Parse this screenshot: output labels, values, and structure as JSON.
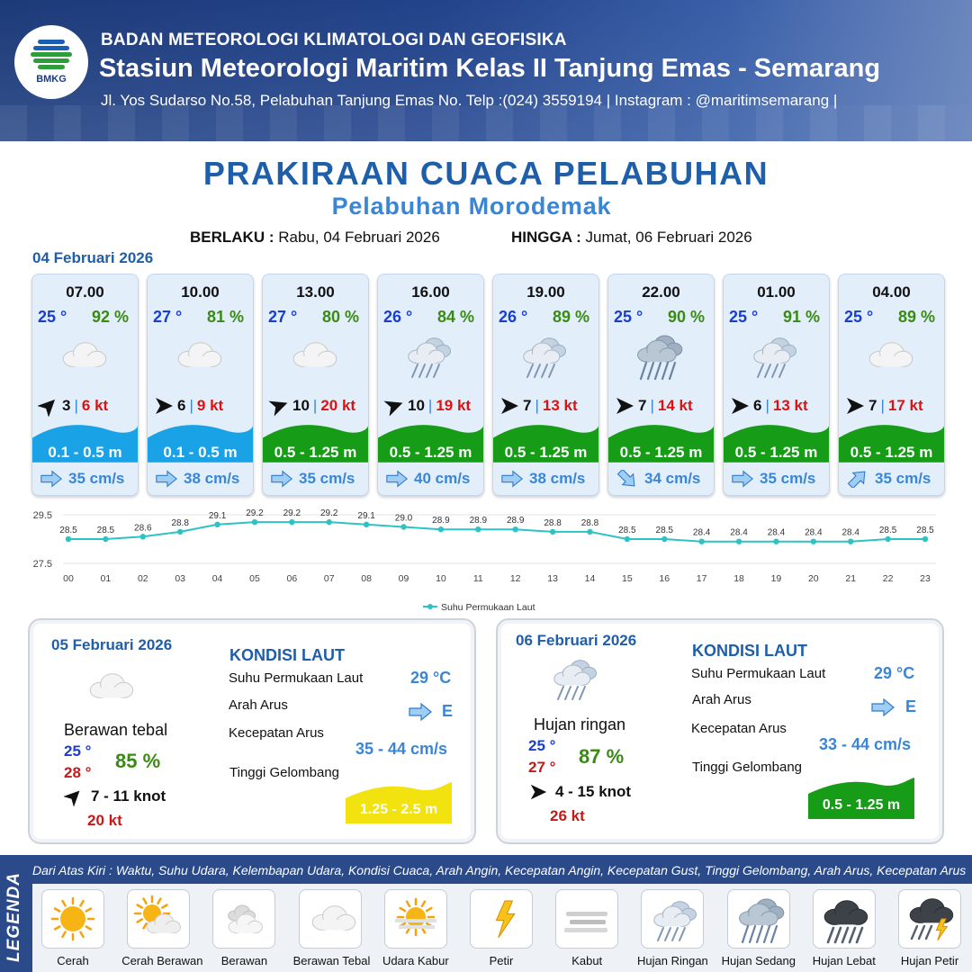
{
  "header": {
    "logo_text": "BMKG",
    "agency": "BADAN METEOROLOGI KLIMATOLOGI DAN GEOFISIKA",
    "station": "Stasiun Meteorologi Maritim Kelas II Tanjung Emas - Semarang",
    "address": "Jl. Yos Sudarso No.58, Pelabuhan Tanjung Emas No. Telp :(024) 3559194 | Instagram : @maritimsemarang |"
  },
  "title": "PRAKIRAAN CUACA PELABUHAN",
  "subtitle": "Pelabuhan Morodemak",
  "validity": {
    "from_label": "BERLAKU :",
    "from_value": "Rabu, 04 Februari 2026",
    "to_label": "HINGGA :",
    "to_value": "Jumat, 06 Februari 2026"
  },
  "day1_date": "04 Februari 2026",
  "cards": [
    {
      "time": "07.00",
      "temp": "25 °",
      "humidity": "92 %",
      "condition_icon": "berawan-tebal-icon",
      "wind_dir_deg": 45,
      "wind_speed": "3",
      "gust": "6 kt",
      "wave": "0.1 - 0.5 m",
      "wave_color": "#19a2e6",
      "current_dir_deg": 90,
      "current": "35 cm/s"
    },
    {
      "time": "10.00",
      "temp": "27 °",
      "humidity": "81 %",
      "condition_icon": "berawan-tebal-icon",
      "wind_dir_deg": 90,
      "wind_speed": "6",
      "gust": "9 kt",
      "wave": "0.1 - 0.5 m",
      "wave_color": "#19a2e6",
      "current_dir_deg": 90,
      "current": "38 cm/s"
    },
    {
      "time": "13.00",
      "temp": "27 °",
      "humidity": "80 %",
      "condition_icon": "berawan-tebal-icon",
      "wind_dir_deg": 70,
      "wind_speed": "10",
      "gust": "20 kt",
      "wave": "0.5 - 1.25 m",
      "wave_color": "#169c16",
      "current_dir_deg": 90,
      "current": "35 cm/s"
    },
    {
      "time": "16.00",
      "temp": "26 °",
      "humidity": "84 %",
      "condition_icon": "hujan-ringan-icon",
      "wind_dir_deg": 70,
      "wind_speed": "10",
      "gust": "19 kt",
      "wave": "0.5 - 1.25 m",
      "wave_color": "#169c16",
      "current_dir_deg": 90,
      "current": "40 cm/s"
    },
    {
      "time": "19.00",
      "temp": "26 °",
      "humidity": "89 %",
      "condition_icon": "hujan-ringan-icon",
      "wind_dir_deg": 90,
      "wind_speed": "7",
      "gust": "13 kt",
      "wave": "0.5 - 1.25 m",
      "wave_color": "#169c16",
      "current_dir_deg": 90,
      "current": "38 cm/s"
    },
    {
      "time": "22.00",
      "temp": "25 °",
      "humidity": "90 %",
      "condition_icon": "hujan-sedang-icon",
      "wind_dir_deg": 90,
      "wind_speed": "7",
      "gust": "14 kt",
      "wave": "0.5 - 1.25 m",
      "wave_color": "#169c16",
      "current_dir_deg": 135,
      "current": "34 cm/s"
    },
    {
      "time": "01.00",
      "temp": "25 °",
      "humidity": "91 %",
      "condition_icon": "hujan-ringan-icon",
      "wind_dir_deg": 90,
      "wind_speed": "6",
      "gust": "13 kt",
      "wave": "0.5 - 1.25 m",
      "wave_color": "#169c16",
      "current_dir_deg": 90,
      "current": "35 cm/s"
    },
    {
      "time": "04.00",
      "temp": "25 °",
      "humidity": "89 %",
      "condition_icon": "berawan-tebal-icon",
      "wind_dir_deg": 90,
      "wind_speed": "7",
      "gust": "17 kt",
      "wave": "0.5 - 1.25 m",
      "wave_color": "#169c16",
      "current_dir_deg": 45,
      "current": "35 cm/s"
    }
  ],
  "chart_data": {
    "type": "line",
    "title": "",
    "xlabel": "",
    "ylabel": "",
    "categories": [
      "00",
      "01",
      "02",
      "03",
      "04",
      "05",
      "06",
      "07",
      "08",
      "09",
      "10",
      "11",
      "12",
      "13",
      "14",
      "15",
      "16",
      "17",
      "18",
      "19",
      "20",
      "21",
      "22",
      "23"
    ],
    "series": [
      {
        "name": "Suhu Permukaan Laut",
        "values": [
          28.5,
          28.5,
          28.6,
          28.8,
          29.1,
          29.2,
          29.2,
          29.2,
          29.1,
          29.0,
          28.9,
          28.9,
          28.9,
          28.8,
          28.8,
          28.5,
          28.5,
          28.4,
          28.4,
          28.4,
          28.4,
          28.4,
          28.5,
          28.5
        ]
      }
    ],
    "data_labels": [
      "28.5",
      "28.5",
      "28.6",
      "28.8",
      "29.1",
      "29.2",
      "29.2",
      "29.2",
      "29.1",
      "29.0",
      "28.9",
      "28.9",
      "28.9",
      "28.8",
      "28.8",
      "28.5",
      "28.5",
      "28.4",
      "28.4",
      "28.4",
      "28.4",
      "28.4",
      "28.5",
      "28.5"
    ],
    "y_ticks": [
      "29.5",
      "27.5"
    ],
    "ylim": [
      27.5,
      29.5
    ],
    "legend_position": "bottom",
    "color": "#2fc2c2"
  },
  "days": [
    {
      "date": "05 Februari 2026",
      "condition_icon": "berawan-tebal-icon",
      "condition": "Berawan tebal",
      "temp_min": "25 °",
      "temp_max": "28 °",
      "humidity": "85 %",
      "wind_dir_deg": 45,
      "wind": "7  - 11 knot",
      "gust": "20 kt",
      "sea_title": "KONDISI LAUT",
      "sst_label": "Suhu Permukaan Laut",
      "sst_value": "29 °C",
      "current_dir_label": "Arah Arus",
      "current_dir_value": "E",
      "current_speed_label": "Kecepatan Arus",
      "current_speed_value": "35 - 44 cm/s",
      "wave_label": "Tinggi Gelombang",
      "wave_value": "1.25 - 2.5 m",
      "wave_color": "#f2e20f",
      "wave_text_color": "#ffffff"
    },
    {
      "date": "06 Februari 2026",
      "condition_icon": "hujan-ringan-icon",
      "condition": "Hujan ringan",
      "temp_min": "25 °",
      "temp_max": "27 °",
      "humidity": "87 %",
      "wind_dir_deg": 90,
      "wind": "4  - 15 knot",
      "gust": "26 kt",
      "sea_title": "KONDISI LAUT",
      "sst_label": "Suhu Permukaan Laut",
      "sst_value": "29 °C",
      "current_dir_label": "Arah Arus",
      "current_dir_value": "E",
      "current_speed_label": "Kecepatan Arus",
      "current_speed_value": "33 - 44 cm/s",
      "wave_label": "Tinggi Gelombang",
      "wave_value": "0.5 - 1.25 m",
      "wave_color": "#169c16",
      "wave_text_color": "#ffffff"
    }
  ],
  "legend": {
    "title": "LEGENDA",
    "description": "Dari Atas Kiri : Waktu, Suhu Udara, Kelembapan Udara, Kondisi Cuaca, Arah Angin, Kecepatan Angin, Kecepatan Gust, Tinggi Gelombang, Arah Arus, Kecepatan Arus",
    "items": [
      {
        "label": "Cerah",
        "icon": "cerah-icon"
      },
      {
        "label": "Cerah Berawan",
        "icon": "cerah-berawan-icon"
      },
      {
        "label": "Berawan",
        "icon": "berawan-icon"
      },
      {
        "label": "Berawan Tebal",
        "icon": "berawan-tebal-icon"
      },
      {
        "label": "Udara Kabur",
        "icon": "udara-kabur-icon"
      },
      {
        "label": "Petir",
        "icon": "petir-icon"
      },
      {
        "label": "Kabut",
        "icon": "kabut-icon"
      },
      {
        "label": "Hujan Ringan",
        "icon": "hujan-ringan-icon"
      },
      {
        "label": "Hujan Sedang",
        "icon": "hujan-sedang-icon"
      },
      {
        "label": "Hujan Lebat",
        "icon": "hujan-lebat-icon"
      },
      {
        "label": "Hujan Petir",
        "icon": "hujan-petir-icon"
      }
    ]
  }
}
